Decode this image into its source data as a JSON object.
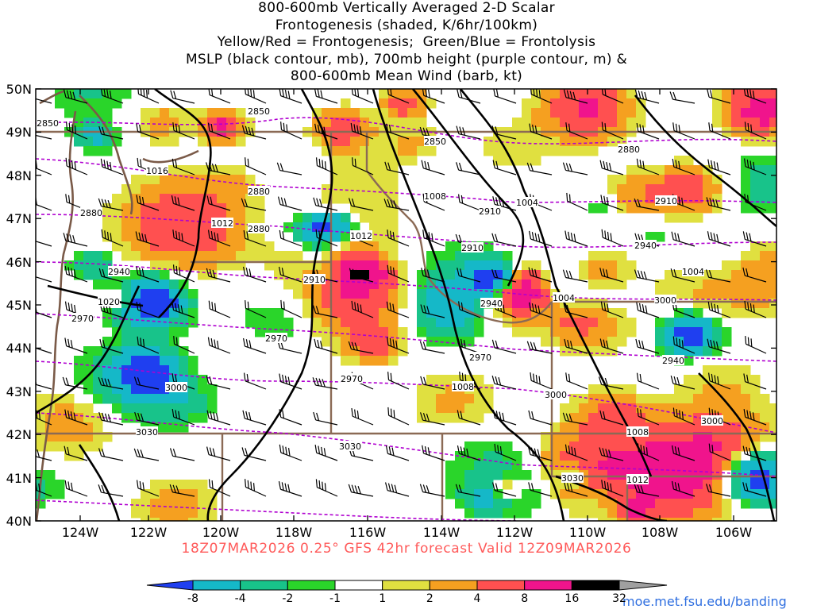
{
  "title_lines": [
    "800-600mb Vertically Averaged 2-D Scalar",
    "Frontogenesis (shaded, K/6hr/100km)",
    "Yellow/Red = Frontogenesis;  Green/Blue = Frontolysis",
    "MSLP (black contour, mb), 700mb height (purple contour, m) &",
    "800-600mb Mean Wind (barb, kt)"
  ],
  "footer": "18Z07MAR2026 0.25° GFS 42hr forecast Valid 12Z09MAR2026",
  "credit": "moe.met.fsu.edu/banding",
  "lat_labels": [
    "50N",
    "49N",
    "48N",
    "47N",
    "46N",
    "45N",
    "44N",
    "43N",
    "42N",
    "41N",
    "40N"
  ],
  "lon_labels": [
    "124W",
    "122W",
    "120W",
    "118W",
    "116W",
    "114W",
    "112W",
    "110W",
    "108W",
    "106W"
  ],
  "colorbar": {
    "labels": [
      "-8",
      "-4",
      "-2",
      "-1",
      "1",
      "2",
      "4",
      "8",
      "16",
      "32"
    ],
    "colors": [
      "#1f3ff0",
      "#15b8c8",
      "#18c38a",
      "#2ad52a",
      "#ffffff",
      "#e0e040",
      "#f5a020",
      "#ff5050",
      "#f0148c",
      "#000000",
      "#a0a0a0"
    ]
  },
  "mslp_labels": [
    "1016",
    "1012",
    "1012",
    "1008",
    "1004",
    "1020",
    "1004",
    "1008",
    "1004",
    "1008",
    "1012"
  ],
  "height_labels": [
    "2850",
    "2850",
    "2880",
    "2850",
    "2880",
    "2910",
    "2910",
    "2880",
    "2880",
    "2910",
    "2940",
    "2940",
    "2910",
    "2940",
    "2970",
    "2970",
    "2970",
    "2940",
    "3000",
    "3000",
    "2970",
    "3000",
    "3000",
    "3030",
    "3030",
    "3030"
  ],
  "colors": {
    "mslp": "#000000",
    "height": "#b000d0",
    "state_borders": "#8b6a55",
    "coast": "#7a5a48"
  }
}
